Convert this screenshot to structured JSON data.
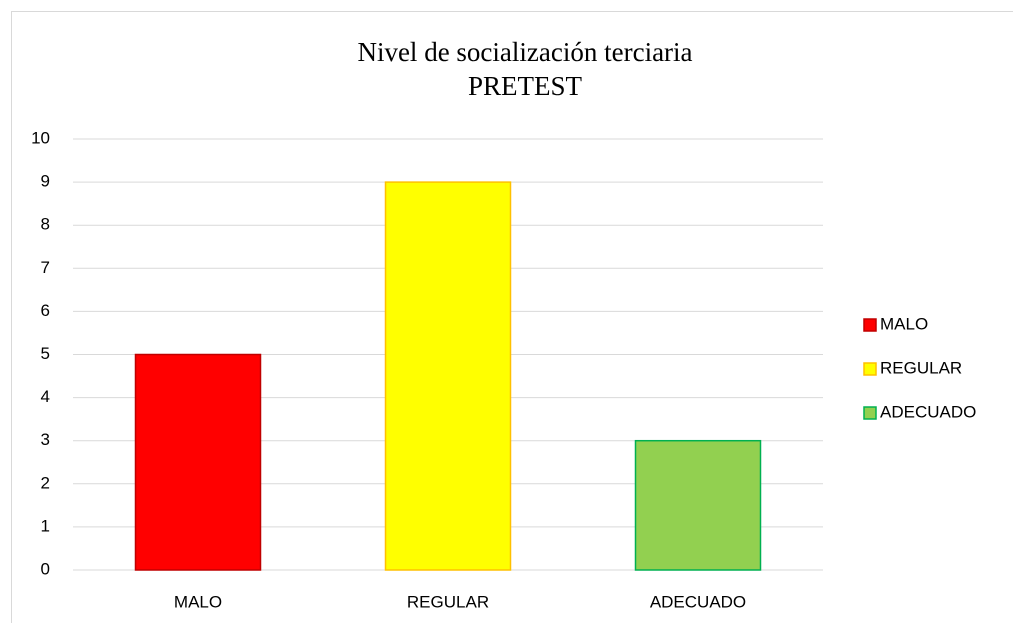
{
  "chart_data": {
    "type": "bar",
    "title": "Nivel de socialización terciaria",
    "subtitle": "PRETEST",
    "categories": [
      "MALO",
      "REGULAR",
      "ADECUADO"
    ],
    "values": [
      5,
      9,
      3
    ],
    "colors": [
      "#ff0000",
      "#ffff00",
      "#92d050"
    ],
    "edge_colors": [
      "#c00000",
      "#ffc000",
      "#00b050"
    ],
    "ylim": [
      0,
      10
    ],
    "yticks": [
      0,
      1,
      2,
      3,
      4,
      5,
      6,
      7,
      8,
      9,
      10
    ],
    "grid": true,
    "legend": "right"
  }
}
